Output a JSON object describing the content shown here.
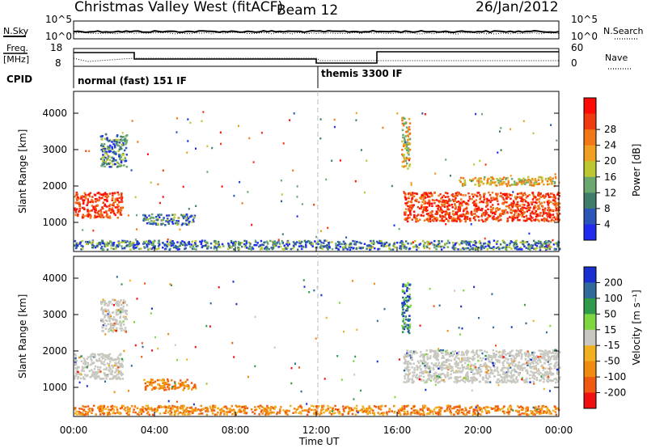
{
  "header": {
    "station": "Christmas Valley West (fitACF)",
    "beam": "Beam 12",
    "date": "26/Jan/2012"
  },
  "strip": {
    "nsky_label": "N.Sky",
    "nsky_ticks": [
      "10^5",
      "10^0"
    ],
    "nsearch_label": "N.Search",
    "nsearch_ticks": [
      "10^5",
      "10^0"
    ],
    "freq_label_1": "Freq.",
    "freq_label_2": "[MHz]",
    "freq_ticks": [
      "18",
      "8"
    ],
    "nave_label": "Nave",
    "nave_ticks": [
      "60",
      "0"
    ],
    "cpid_label": "CPID",
    "cpid_modes": [
      "normal (fast) 151 IF",
      "themis 3300 IF"
    ]
  },
  "chart_data": [
    {
      "type": "heatmap",
      "panel": "power",
      "ylabel": "Slant Range [km]",
      "yticks": [
        "1000",
        "2000",
        "3000",
        "4000"
      ],
      "ylim": [
        200,
        4600
      ],
      "xlim": [
        0,
        24
      ],
      "colorbar_label": "Power [dB]",
      "colorbar_ticks": [
        "4",
        "8",
        "12",
        "16",
        "20",
        "24",
        "28"
      ],
      "colors": [
        "#1f2cf0",
        "#2c55b8",
        "#3f7d6b",
        "#6aa870",
        "#bcc832",
        "#f0a020",
        "#f07818",
        "#f03a10",
        "#ff0a05"
      ],
      "features": [
        {
          "t_start": 0.0,
          "t_end": 2.4,
          "range_center": 1500,
          "range_width": 700,
          "level": "high"
        },
        {
          "t_start": 1.3,
          "t_end": 2.6,
          "range_center": 3000,
          "range_width": 900,
          "level": "low"
        },
        {
          "t_start": 3.4,
          "t_end": 6.0,
          "range_center": 1100,
          "range_width": 300,
          "level": "low"
        },
        {
          "t_start": 0.0,
          "t_end": 24.0,
          "range_center": 400,
          "range_width": 250,
          "level": "low"
        },
        {
          "t_start": 16.3,
          "t_end": 24.0,
          "range_center": 1450,
          "range_width": 800,
          "level": "high"
        },
        {
          "t_start": 19.0,
          "t_end": 23.8,
          "range_center": 2150,
          "range_width": 250,
          "level": "mid"
        },
        {
          "t_start": 16.2,
          "t_end": 16.6,
          "range_center": 3200,
          "range_width": 1400,
          "level": "mid"
        }
      ]
    },
    {
      "type": "heatmap",
      "panel": "velocity",
      "ylabel": "Slant Range [km]",
      "yticks": [
        "1000",
        "2000",
        "3000",
        "4000"
      ],
      "ylim": [
        200,
        4600
      ],
      "xlim": [
        0,
        24
      ],
      "xticks": [
        "00:00",
        "04:00",
        "08:00",
        "12:00",
        "16:00",
        "20:00",
        "00:00"
      ],
      "xlabel": "Time UT",
      "colorbar_label": "Velocity [m s⁻¹]",
      "colorbar_ticks": [
        "200",
        "100",
        "50",
        "15",
        "-15",
        "-50",
        "-100",
        "-200"
      ],
      "colors": [
        "#1a2fd0",
        "#2f6a9a",
        "#2e9a4a",
        "#7ed640",
        "#c8c8c0",
        "#f0b020",
        "#f08a10",
        "#f05a10",
        "#f01010"
      ],
      "features": [
        {
          "t_start": 0.0,
          "t_end": 2.4,
          "range_center": 1600,
          "range_width": 700,
          "class": "ground"
        },
        {
          "t_start": 1.3,
          "t_end": 2.6,
          "range_center": 3000,
          "range_width": 900,
          "class": "ground"
        },
        {
          "t_start": 3.4,
          "t_end": 6.0,
          "range_center": 1100,
          "range_width": 300,
          "class": "negative"
        },
        {
          "t_start": 0.0,
          "t_end": 24.0,
          "range_center": 400,
          "range_width": 250,
          "class": "negative"
        },
        {
          "t_start": 16.3,
          "t_end": 24.0,
          "range_center": 1600,
          "range_width": 900,
          "class": "ground"
        },
        {
          "t_start": 16.2,
          "t_end": 16.6,
          "range_center": 3200,
          "range_width": 1400,
          "class": "positive"
        }
      ]
    }
  ]
}
